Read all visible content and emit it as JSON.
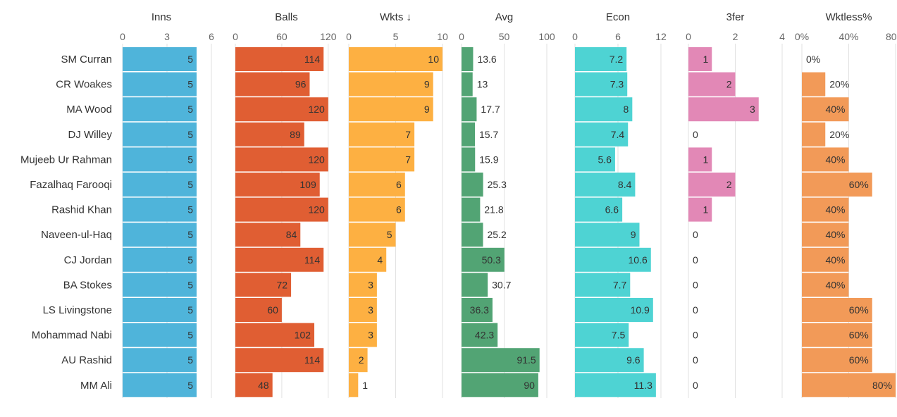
{
  "chart_data": {
    "type": "bar",
    "orientation": "horizontal",
    "categories": [
      "SM Curran",
      "CR Woakes",
      "MA Wood",
      "DJ Willey",
      "Mujeeb Ur Rahman",
      "Fazalhaq Farooqi",
      "Rashid Khan",
      "Naveen-ul-Haq",
      "CJ Jordan",
      "BA Stokes",
      "LS Livingstone",
      "Mohammad Nabi",
      "AU Rashid",
      "MM Ali"
    ],
    "grid": true,
    "series": [
      {
        "name": "Inns",
        "color": "#4fb4da",
        "xlim": [
          0,
          6
        ],
        "ticks": [
          "0",
          "3",
          "6"
        ],
        "tick_values": [
          0,
          3,
          6
        ],
        "values": [
          5,
          5,
          5,
          5,
          5,
          5,
          5,
          5,
          5,
          5,
          5,
          5,
          5,
          5
        ],
        "labels": [
          "5",
          "5",
          "5",
          "5",
          "5",
          "5",
          "5",
          "5",
          "5",
          "5",
          "5",
          "5",
          "5",
          "5"
        ]
      },
      {
        "name": "Balls",
        "color": "#e05e33",
        "xlim": [
          0,
          132
        ],
        "ticks": [
          "0",
          "60",
          "120"
        ],
        "tick_values": [
          0,
          60,
          120
        ],
        "values": [
          114,
          96,
          120,
          89,
          120,
          109,
          120,
          84,
          114,
          72,
          60,
          102,
          114,
          48
        ],
        "labels": [
          "114",
          "96",
          "120",
          "89",
          "120",
          "109",
          "120",
          "84",
          "114",
          "72",
          "60",
          "102",
          "114",
          "48"
        ]
      },
      {
        "name": "Wkts ↓",
        "color": "#fdb042",
        "xlim": [
          0,
          10
        ],
        "ticks": [
          "0",
          "5",
          "10"
        ],
        "tick_values": [
          0,
          5,
          10
        ],
        "values": [
          10,
          9,
          9,
          7,
          7,
          6,
          6,
          5,
          4,
          3,
          3,
          3,
          2,
          1
        ],
        "labels": [
          "10",
          "9",
          "9",
          "7",
          "7",
          "6",
          "6",
          "5",
          "4",
          "3",
          "3",
          "3",
          "2",
          "1"
        ]
      },
      {
        "name": "Avg",
        "color": "#52a474",
        "xlim": [
          0,
          100
        ],
        "ticks": [
          "0",
          "50",
          "100"
        ],
        "tick_values": [
          0,
          50,
          100
        ],
        "values": [
          13.6,
          13,
          17.7,
          15.7,
          15.9,
          25.3,
          21.8,
          25.2,
          50.3,
          30.7,
          36.3,
          42.3,
          91.5,
          90
        ],
        "labels": [
          "13.6",
          "13",
          "17.7",
          "15.7",
          "15.9",
          "25.3",
          "21.8",
          "25.2",
          "50.3",
          "30.7",
          "36.3",
          "42.3",
          "91.5",
          "90"
        ]
      },
      {
        "name": "Econ",
        "color": "#4ed3d3",
        "xlim": [
          0,
          12
        ],
        "ticks": [
          "0",
          "6",
          "12"
        ],
        "tick_values": [
          0,
          6,
          12
        ],
        "values": [
          7.2,
          7.3,
          8,
          7.4,
          5.6,
          8.4,
          6.6,
          9,
          10.6,
          7.7,
          10.9,
          7.5,
          9.6,
          11.3
        ],
        "labels": [
          "7.2",
          "7.3",
          "8",
          "7.4",
          "5.6",
          "8.4",
          "6.6",
          "9",
          "10.6",
          "7.7",
          "10.9",
          "7.5",
          "9.6",
          "11.3"
        ]
      },
      {
        "name": "3fer",
        "color": "#e288b6",
        "xlim": [
          0,
          4
        ],
        "ticks": [
          "0",
          "2",
          "4"
        ],
        "tick_values": [
          0,
          2,
          4
        ],
        "values": [
          1,
          2,
          3,
          0,
          1,
          2,
          1,
          0,
          0,
          0,
          0,
          0,
          0,
          0
        ],
        "labels": [
          "1",
          "2",
          "3",
          "0",
          "1",
          "2",
          "1",
          "0",
          "0",
          "0",
          "0",
          "0",
          "0",
          "0"
        ]
      },
      {
        "name": "Wktless%",
        "color": "#f29a58",
        "xlim": [
          0,
          80
        ],
        "ticks": [
          "0%",
          "40%",
          "80%"
        ],
        "tick_values": [
          0,
          40,
          80
        ],
        "values": [
          0,
          20,
          40,
          20,
          40,
          60,
          40,
          40,
          40,
          40,
          60,
          60,
          60,
          80
        ],
        "labels": [
          "0%",
          "20%",
          "40%",
          "20%",
          "40%",
          "60%",
          "40%",
          "40%",
          "40%",
          "40%",
          "60%",
          "60%",
          "60%",
          "80%"
        ]
      }
    ]
  }
}
